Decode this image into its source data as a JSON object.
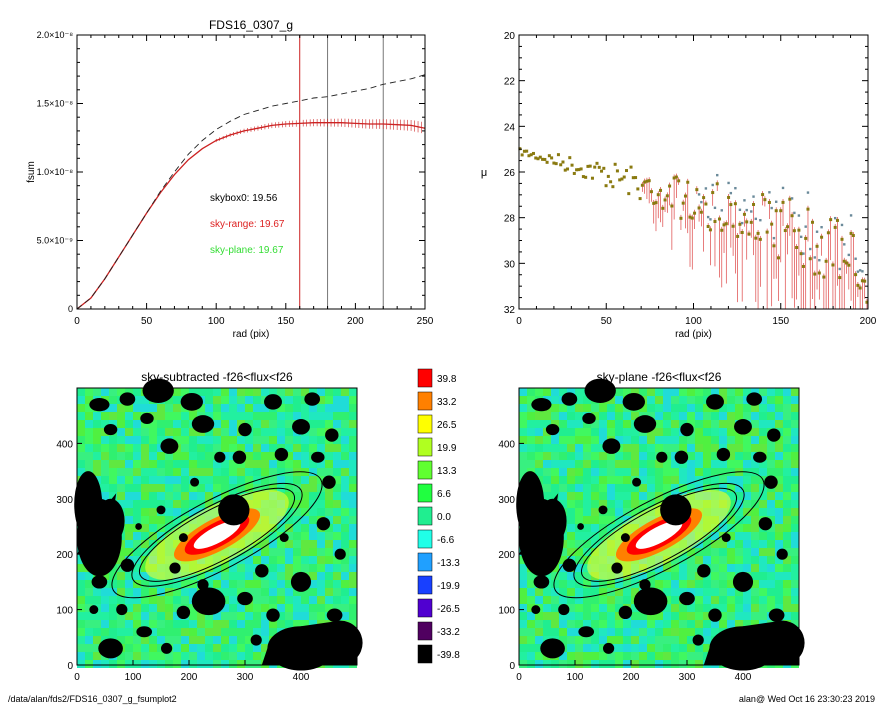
{
  "chart_data": [
    {
      "type": "line",
      "title": "FDS16_0307_g",
      "xlabel": "rad (pix)",
      "ylabel": "fsum",
      "xlim": [
        0,
        250
      ],
      "ylim": [
        0,
        2e-08
      ],
      "x_ticks": [
        "0",
        "50",
        "100",
        "150",
        "200",
        "250"
      ],
      "y_ticks": [
        {
          "v": 0,
          "label": "0"
        },
        {
          "v": 5e-09,
          "label": "5.0×10⁻⁹"
        },
        {
          "v": 1e-08,
          "label": "1.0×10⁻⁸"
        },
        {
          "v": 1.5e-08,
          "label": "1.5×10⁻⁸"
        },
        {
          "v": 2e-08,
          "label": "2.0×10⁻⁸"
        }
      ],
      "vlines": [
        {
          "x": 160,
          "color": "#cc2222"
        },
        {
          "x": 180,
          "color": "#777777"
        },
        {
          "x": 220,
          "color": "#777777"
        }
      ],
      "series": [
        {
          "style": "solid-red-errorbars",
          "color": "#cc2222",
          "x": [
            0,
            10,
            20,
            30,
            40,
            50,
            60,
            70,
            80,
            90,
            100,
            110,
            120,
            130,
            140,
            150,
            160,
            170,
            180,
            190,
            200,
            210,
            220,
            230,
            240,
            250
          ],
          "y": [
            0,
            8e-10,
            2.2e-09,
            3.8e-09,
            5.4e-09,
            7e-09,
            8.5e-09,
            9.8e-09,
            1.09e-08,
            1.17e-08,
            1.23e-08,
            1.27e-08,
            1.3e-08,
            1.32e-08,
            1.34e-08,
            1.35e-08,
            1.355e-08,
            1.36e-08,
            1.36e-08,
            1.36e-08,
            1.355e-08,
            1.35e-08,
            1.35e-08,
            1.345e-08,
            1.34e-08,
            1.32e-08
          ]
        },
        {
          "style": "dashed-black",
          "color": "#222222",
          "x": [
            0,
            10,
            20,
            30,
            40,
            50,
            60,
            70,
            80,
            90,
            100,
            110,
            120,
            130,
            140,
            150,
            160,
            170,
            180,
            190,
            200,
            210,
            220,
            230,
            240,
            250
          ],
          "y": [
            0,
            8e-10,
            2.2e-09,
            3.8e-09,
            5.4e-09,
            7e-09,
            8.6e-09,
            1e-08,
            1.13e-08,
            1.23e-08,
            1.31e-08,
            1.37e-08,
            1.42e-08,
            1.45e-08,
            1.48e-08,
            1.5e-08,
            1.52e-08,
            1.54e-08,
            1.55e-08,
            1.57e-08,
            1.59e-08,
            1.61e-08,
            1.64e-08,
            1.66e-08,
            1.68e-08,
            1.71e-08
          ]
        }
      ],
      "annotations": [
        {
          "text": "skybox0: 19.56",
          "color": "#000000"
        },
        {
          "text": "sky-range: 19.67",
          "color": "#dd2222"
        },
        {
          "text": "sky-plane: 19.67",
          "color": "#33dd33"
        }
      ]
    },
    {
      "type": "scatter",
      "title": "",
      "xlabel": "rad (pix)",
      "ylabel": "μ",
      "xlim": [
        0,
        200
      ],
      "ylim": [
        32,
        20
      ],
      "x_ticks": [
        "0",
        "50",
        "100",
        "150",
        "200"
      ],
      "y_ticks": [
        "20",
        "22",
        "24",
        "26",
        "28",
        "30",
        "32"
      ]
    },
    {
      "type": "heatmap",
      "title": "sky-subtracted -f26<flux<f26",
      "xlim": [
        0,
        500
      ],
      "ylim": [
        0,
        500
      ],
      "x_ticks": [
        "0",
        "100",
        "200",
        "300",
        "400"
      ],
      "y_ticks": [
        "0",
        "100",
        "200",
        "300",
        "400"
      ]
    },
    {
      "type": "heatmap",
      "title": "sky-plane -f26<flux<f26",
      "xlim": [
        0,
        500
      ],
      "ylim": [
        0,
        500
      ],
      "x_ticks": [
        "0",
        "100",
        "200",
        "300",
        "400"
      ],
      "y_ticks": [
        "0",
        "100",
        "200",
        "300",
        "400"
      ]
    }
  ],
  "colorbar": {
    "labels": [
      "39.8",
      "33.2",
      "26.5",
      "19.9",
      "13.3",
      "6.6",
      "0.0",
      "-6.6",
      "-13.3",
      "-19.9",
      "-26.5",
      "-33.2",
      "-39.8"
    ],
    "colors": [
      "#ff0000",
      "#ff8000",
      "#ffff00",
      "#b0ff20",
      "#60ff30",
      "#20ff40",
      "#20ee90",
      "#20ffe8",
      "#20a0ff",
      "#1840ff",
      "#5000d0",
      "#500060",
      "#000000"
    ]
  },
  "footer": {
    "left": "/data/alan/fds2/FDS16_0307_g_fsumplot2",
    "right": "alan@  Wed Oct 16 23:30:23 2019"
  }
}
